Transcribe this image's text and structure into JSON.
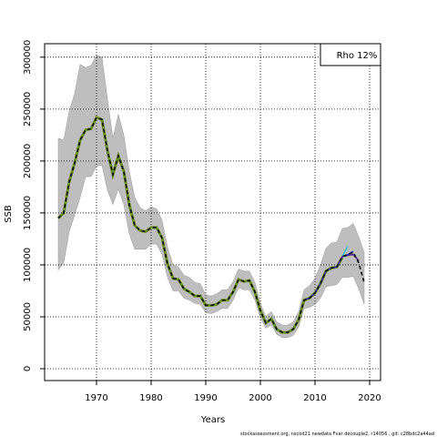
{
  "chart_data": {
    "type": "line",
    "xlabel": "Years",
    "ylabel": "SSB",
    "annotation": "Rho 12%",
    "footer": "stockassessment.org, nscod21 newdata Fvar decouple2, r14056 , git: c28bdc2a44ad",
    "x": [
      1963,
      1964,
      1965,
      1966,
      1967,
      1968,
      1969,
      1970,
      1971,
      1972,
      1973,
      1974,
      1975,
      1976,
      1977,
      1978,
      1979,
      1980,
      1981,
      1982,
      1983,
      1984,
      1985,
      1986,
      1987,
      1988,
      1989,
      1990,
      1991,
      1992,
      1993,
      1994,
      1995,
      1996,
      1997,
      1998,
      1999,
      2000,
      2001,
      2002,
      2003,
      2004,
      2005,
      2006,
      2007,
      2008,
      2009,
      2010,
      2011,
      2012,
      2013,
      2014,
      2015,
      2016,
      2017,
      2018,
      2019
    ],
    "band": {
      "color": "#bebebe",
      "upper": [
        222000,
        220000,
        248000,
        265000,
        293000,
        290000,
        292000,
        302000,
        300000,
        260000,
        222000,
        245000,
        225000,
        190000,
        165000,
        155000,
        152000,
        156000,
        154000,
        143000,
        117000,
        100000,
        98000,
        90000,
        88000,
        83000,
        82000,
        71000,
        70000,
        72000,
        76000,
        76000,
        84000,
        96000,
        94000,
        94000,
        83000,
        63000,
        50000,
        55000,
        45000,
        42000,
        42000,
        45000,
        55000,
        76000,
        80000,
        87000,
        100000,
        116000,
        121000,
        122000,
        135000,
        136000,
        140000,
        127000,
        112000
      ],
      "lower": [
        95000,
        102000,
        132000,
        148000,
        165000,
        185000,
        185000,
        195000,
        196000,
        172000,
        158000,
        173000,
        158000,
        130000,
        115000,
        115000,
        115000,
        120000,
        120000,
        110000,
        88000,
        75000,
        75000,
        68000,
        66000,
        63000,
        62000,
        54000,
        53000,
        55000,
        58000,
        58000,
        66000,
        78000,
        76000,
        76000,
        66000,
        49000,
        39000,
        42000,
        33000,
        30000,
        30000,
        32000,
        40000,
        58000,
        59000,
        62000,
        68000,
        79000,
        80000,
        81000,
        88000,
        88000,
        89000,
        77000,
        62000
      ]
    },
    "series": [
      {
        "color": "#6b8e23",
        "width": 3,
        "values": [
          145000,
          150000,
          180000,
          198000,
          220000,
          230000,
          231000,
          242000,
          240000,
          210000,
          187000,
          205000,
          190000,
          158000,
          138000,
          133000,
          132000,
          136000,
          136000,
          126000,
          101000,
          87000,
          86000,
          77000,
          74000,
          70000,
          70000,
          61000,
          61000,
          62000,
          66000,
          66000,
          74000,
          86000,
          84000,
          85000,
          74000,
          56000,
          44000,
          48000,
          38000,
          35000,
          35000,
          38000,
          47000,
          66000,
          68000,
          73000,
          82000,
          94000,
          97000,
          98000,
          107000,
          null,
          null,
          null,
          null
        ]
      },
      {
        "color": "#20c0e0",
        "width": 1.5,
        "values": [
          null,
          null,
          null,
          null,
          null,
          null,
          null,
          null,
          null,
          null,
          null,
          null,
          null,
          null,
          null,
          null,
          null,
          null,
          null,
          null,
          null,
          null,
          null,
          null,
          null,
          null,
          null,
          null,
          null,
          null,
          null,
          null,
          null,
          null,
          null,
          null,
          null,
          null,
          null,
          null,
          null,
          null,
          null,
          null,
          null,
          66000,
          68000,
          73000,
          82000,
          94000,
          97000,
          98000,
          108000,
          118000,
          null,
          null,
          null
        ]
      },
      {
        "color": "#1e3cc8",
        "width": 1.5,
        "values": [
          null,
          null,
          null,
          null,
          null,
          null,
          null,
          null,
          null,
          null,
          null,
          null,
          null,
          null,
          null,
          null,
          null,
          null,
          null,
          null,
          null,
          null,
          null,
          null,
          null,
          null,
          null,
          null,
          null,
          null,
          null,
          null,
          null,
          null,
          null,
          null,
          null,
          null,
          null,
          null,
          null,
          null,
          null,
          null,
          null,
          66000,
          68000,
          73000,
          82000,
          94000,
          97000,
          98000,
          108000,
          110000,
          113000,
          null,
          null
        ]
      },
      {
        "color": "#4b2a80",
        "width": 1.5,
        "values": [
          null,
          null,
          null,
          null,
          null,
          null,
          null,
          null,
          null,
          null,
          null,
          null,
          null,
          null,
          null,
          null,
          null,
          null,
          null,
          null,
          null,
          null,
          null,
          null,
          null,
          null,
          null,
          null,
          null,
          null,
          null,
          null,
          null,
          null,
          null,
          null,
          null,
          null,
          null,
          null,
          null,
          null,
          null,
          null,
          null,
          66000,
          68000,
          73000,
          82000,
          94000,
          97000,
          98000,
          108000,
          109000,
          110000,
          104000,
          null
        ]
      },
      {
        "color": "#000000",
        "width": 1.5,
        "dashed": true,
        "values": [
          145000,
          150000,
          180000,
          198000,
          220000,
          230000,
          231000,
          242000,
          240000,
          210000,
          187000,
          205000,
          190000,
          158000,
          138000,
          133000,
          132000,
          136000,
          136000,
          126000,
          101000,
          87000,
          86000,
          77000,
          74000,
          70000,
          70000,
          61000,
          61000,
          62000,
          66000,
          66000,
          74000,
          86000,
          84000,
          85000,
          74000,
          56000,
          44000,
          48000,
          38000,
          35000,
          35000,
          38000,
          47000,
          66000,
          68000,
          73000,
          82000,
          94000,
          97000,
          98000,
          108000,
          110000,
          112000,
          102000,
          83000
        ]
      }
    ],
    "xlim": [
      1960.5,
      2022
    ],
    "xticks": [
      1970,
      1980,
      1990,
      2000,
      2010,
      2020
    ],
    "ylim": [
      -11400,
      313000
    ],
    "yticks": [
      0,
      50000,
      100000,
      150000,
      200000,
      250000,
      300000
    ],
    "grid": true
  }
}
